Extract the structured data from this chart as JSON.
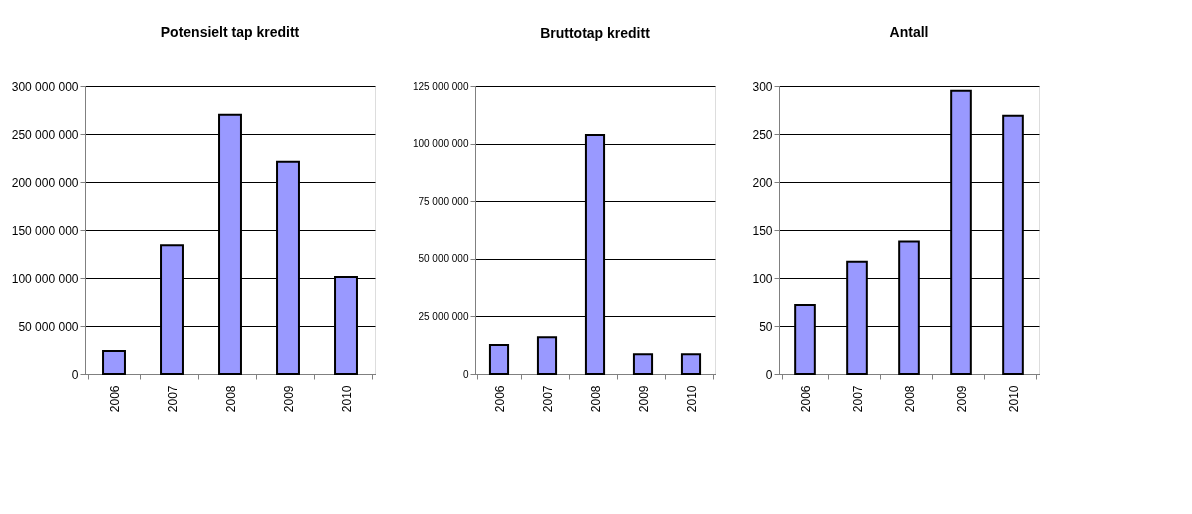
{
  "chart_data": [
    {
      "type": "bar",
      "title": "Potensielt tap kreditt",
      "categories": [
        "2006",
        "2007",
        "2008",
        "2009",
        "2010"
      ],
      "values": [
        24000000,
        134000000,
        270000000,
        221000000,
        101000000
      ],
      "color": "#9999ff",
      "ylim": [
        0,
        300000000
      ],
      "yticks": [
        {
          "value": 0,
          "label": "0"
        },
        {
          "value": 50000000,
          "label": "50 000 000"
        },
        {
          "value": 100000000,
          "label": "100 000 000"
        },
        {
          "value": 150000000,
          "label": "150 000 000"
        },
        {
          "value": 200000000,
          "label": "200 000 000"
        },
        {
          "value": 250000000,
          "label": "250 000 000"
        },
        {
          "value": 300000000,
          "label": "300 000 000"
        }
      ],
      "grid": "y"
    },
    {
      "type": "bar",
      "title": "Bruttotap kreditt",
      "categories": [
        "2006",
        "2007",
        "2008",
        "2009",
        "2010"
      ],
      "values": [
        12600000,
        16000000,
        103700000,
        8600000,
        8600000
      ],
      "color": "#9999ff",
      "ylim": [
        0,
        125000000
      ],
      "yticks": [
        {
          "value": 0,
          "label": "0"
        },
        {
          "value": 25000000,
          "label": "25 000 000"
        },
        {
          "value": 50000000,
          "label": "50 000 000"
        },
        {
          "value": 75000000,
          "label": "75 000 000"
        },
        {
          "value": 100000000,
          "label": "100 000 000"
        },
        {
          "value": 125000000,
          "label": "125 000 000"
        }
      ],
      "grid": "y"
    },
    {
      "type": "bar",
      "title": "Antall",
      "categories": [
        "2006",
        "2007",
        "2008",
        "2009",
        "2010"
      ],
      "values": [
        72,
        117,
        138,
        295,
        269
      ],
      "color": "#9999ff",
      "ylim": [
        0,
        300
      ],
      "yticks": [
        0,
        50,
        100,
        150,
        200,
        250,
        300
      ],
      "grid": "y"
    }
  ]
}
